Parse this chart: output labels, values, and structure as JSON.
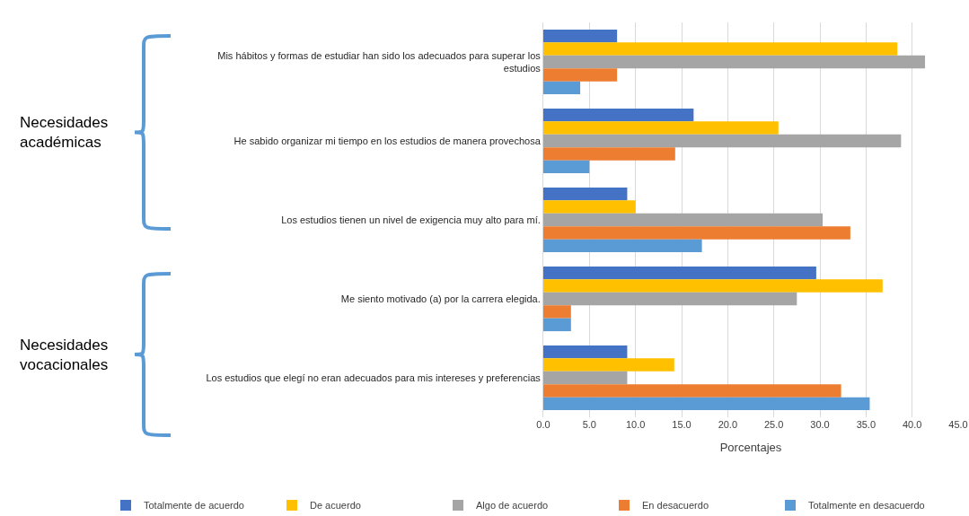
{
  "chart_data": {
    "type": "bar",
    "orientation": "horizontal",
    "xlabel": "Porcentajes",
    "categories": [
      "Mis hábitos y formas de estudiar han sido los adecuados para superar los estudios",
      "He sabido organizar mi tiempo en los estudios de manera provechosa",
      "Los estudios tienen un nivel de exigencia muy alto para mí.",
      "Me siento motivado (a) por la carrera elegida.",
      "Los estudios que elegí no eran adecuados para mis intereses y preferencias"
    ],
    "series": [
      {
        "name": "Totalmente de acuerdo",
        "color": "#4472c4",
        "values": [
          8.0,
          16.3,
          9.1,
          29.6,
          9.1
        ]
      },
      {
        "name": "De acuerdo",
        "color": "#ffc000",
        "values": [
          38.4,
          25.5,
          10.0,
          36.8,
          14.2
        ]
      },
      {
        "name": "Algo de acuerdo",
        "color": "#a5a5a5",
        "values": [
          41.4,
          38.8,
          30.3,
          27.5,
          9.1
        ]
      },
      {
        "name": "En desacuerdo",
        "color": "#ed7d31",
        "values": [
          8.0,
          14.3,
          33.3,
          3.0,
          32.3
        ]
      },
      {
        "name": "Totalmente en desacuerdo",
        "color": "#5b9bd5",
        "values": [
          4.0,
          5.0,
          17.2,
          3.0,
          35.4
        ]
      }
    ],
    "xlim": [
      0,
      45
    ],
    "xticks": [
      {
        "value": 0,
        "label": "0.0"
      },
      {
        "value": 5,
        "label": "5.0"
      },
      {
        "value": 10,
        "label": "10.0"
      },
      {
        "value": 15,
        "label": "15.0"
      },
      {
        "value": 20,
        "label": "20.0"
      },
      {
        "value": 25,
        "label": "25.0"
      },
      {
        "value": 30,
        "label": "30.0"
      },
      {
        "value": 35,
        "label": "35.0"
      },
      {
        "value": 40,
        "label": "40.0"
      },
      {
        "value": 45,
        "label": "45.0"
      }
    ],
    "grid": "x",
    "legend": "bottom",
    "annotations": [
      "Necesidades académicas",
      "Necesidades vocacionales"
    ]
  }
}
